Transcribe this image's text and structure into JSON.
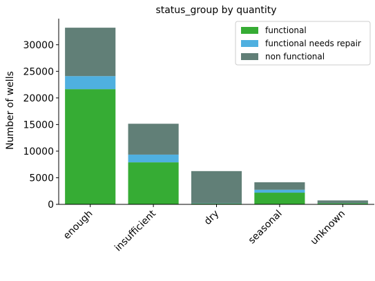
{
  "chart_data": {
    "type": "bar",
    "stacked": true,
    "title": "status_group by quantity",
    "xlabel": "",
    "ylabel": "Number of wells",
    "categories": [
      "enough",
      "insufficient",
      "dry",
      "seasonal",
      "unknown"
    ],
    "series": [
      {
        "name": "functional",
        "color": "#36ac34",
        "values": [
          21650,
          7900,
          160,
          2200,
          210
        ]
      },
      {
        "name": "functional needs repair",
        "color": "#4fb0e0",
        "values": [
          2450,
          1450,
          40,
          550,
          30
        ]
      },
      {
        "name": "non functional",
        "color": "#617f77",
        "values": [
          9100,
          5800,
          6050,
          1400,
          500
        ]
      }
    ],
    "ylim": [
      0,
      34900
    ],
    "yticks": [
      0,
      5000,
      10000,
      15000,
      20000,
      25000,
      30000
    ],
    "grid": false,
    "legend_position": "top-right"
  }
}
